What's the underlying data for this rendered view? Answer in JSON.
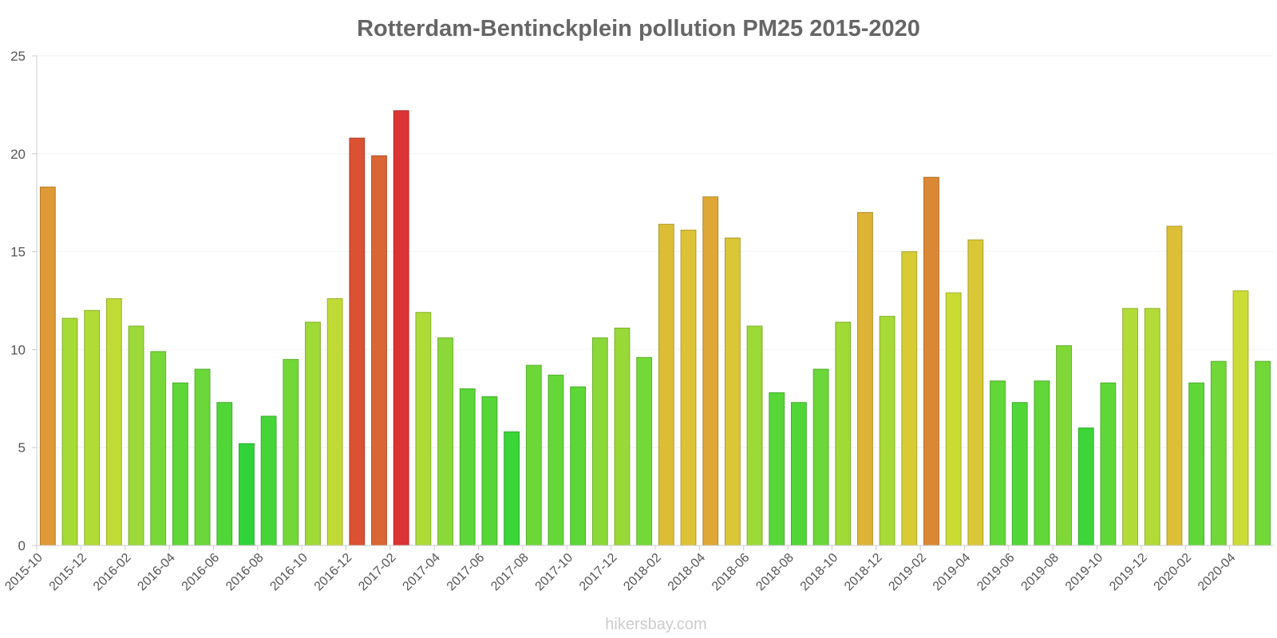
{
  "chart_data": {
    "type": "bar",
    "title": "Rotterdam-Bentinckplein pollution PM25 2015-2020",
    "xlabel": "",
    "ylabel": "",
    "ylim": [
      0,
      25
    ],
    "yticks": [
      0,
      5,
      10,
      15,
      20,
      25
    ],
    "grid": true,
    "categories": [
      "2015-10",
      "2015-11",
      "2015-12",
      "2016-01",
      "2016-02",
      "2016-03",
      "2016-04",
      "2016-05",
      "2016-06",
      "2016-07",
      "2016-08",
      "2016-09",
      "2016-10",
      "2016-11",
      "2016-12",
      "2017-01",
      "2017-02",
      "2017-03",
      "2017-04",
      "2017-05",
      "2017-06",
      "2017-07",
      "2017-08",
      "2017-09",
      "2017-10",
      "2017-11",
      "2017-12",
      "2018-01",
      "2018-02",
      "2018-03",
      "2018-04",
      "2018-05",
      "2018-06",
      "2018-07",
      "2018-08",
      "2018-09",
      "2018-10",
      "2018-11",
      "2018-12",
      "2019-01",
      "2019-02",
      "2019-03",
      "2019-04",
      "2019-05",
      "2019-06",
      "2019-07",
      "2019-08",
      "2019-09",
      "2019-10",
      "2019-11",
      "2019-12",
      "2020-01",
      "2020-02",
      "2020-03",
      "2020-04",
      "2020-05"
    ],
    "xtick_labels": [
      "2015-10",
      "2015-12",
      "2016-02",
      "2016-04",
      "2016-06",
      "2016-08",
      "2016-10",
      "2016-12",
      "2017-02",
      "2017-04",
      "2017-06",
      "2017-08",
      "2017-10",
      "2017-12",
      "2018-02",
      "2018-04",
      "2018-06",
      "2018-08",
      "2018-10",
      "2018-12",
      "2019-02",
      "2019-04",
      "2019-06",
      "2019-08",
      "2019-10",
      "2019-12",
      "2020-02",
      "2020-04"
    ],
    "values": [
      18.3,
      11.6,
      12.0,
      12.6,
      11.2,
      9.9,
      8.3,
      9.0,
      7.3,
      5.2,
      6.6,
      9.5,
      11.4,
      12.6,
      20.8,
      19.9,
      22.2,
      11.9,
      10.6,
      8.0,
      7.6,
      5.8,
      9.2,
      8.7,
      8.1,
      10.6,
      11.1,
      9.6,
      16.4,
      16.1,
      17.8,
      15.7,
      11.2,
      7.8,
      7.3,
      9.0,
      11.4,
      17.0,
      11.7,
      15.0,
      18.8,
      12.9,
      15.6,
      8.4,
      7.3,
      8.4,
      10.2,
      6.0,
      8.3,
      12.1,
      12.1,
      16.3,
      8.3,
      9.4,
      13.0,
      9.4
    ],
    "series": [
      {
        "name": "PM25"
      }
    ]
  },
  "watermark": "hikersbay.com"
}
